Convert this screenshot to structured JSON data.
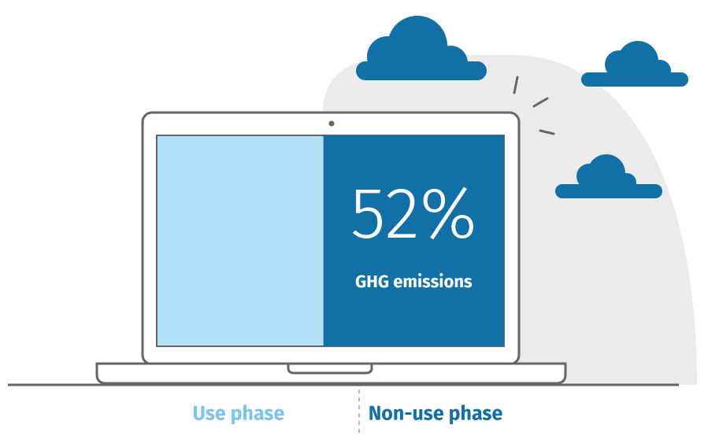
{
  "screen": {
    "non_use_share": 52,
    "value_label": "52%",
    "caption": "GHG emissions"
  },
  "phases": {
    "use": "Use phase",
    "non_use": "Non-use phase"
  }
}
